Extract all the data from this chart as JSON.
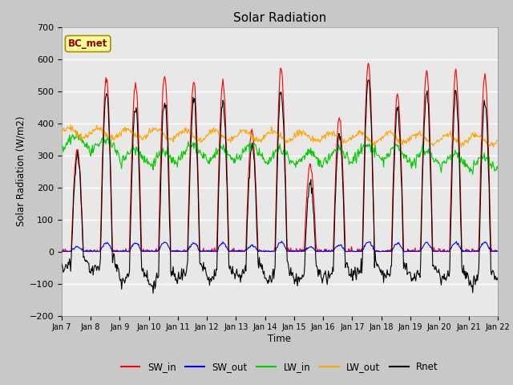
{
  "title": "Solar Radiation",
  "xlabel": "Time",
  "ylabel": "Solar Radiation (W/m2)",
  "ylim": [
    -200,
    700
  ],
  "yticks": [
    -200,
    -100,
    0,
    100,
    200,
    300,
    400,
    500,
    600,
    700
  ],
  "annotation": "BC_met",
  "legend_labels": [
    "SW_in",
    "SW_out",
    "LW_in",
    "LW_out",
    "Rnet"
  ],
  "legend_colors": [
    "#ff0000",
    "#0000ff",
    "#00cc00",
    "#ffa500",
    "#000000"
  ],
  "line_colors": {
    "SW_in": "#ff0000",
    "SW_out": "#0000ff",
    "LW_in": "#00cc00",
    "LW_out": "#ffa500",
    "Rnet": "#000000"
  },
  "x_tick_labels": [
    "Jan 7",
    "Jan 8",
    "Jan 9",
    "Jan 10",
    "Jan 11",
    "Jan 12",
    "Jan 13",
    "Jan 14",
    "Jan 15",
    "Jan 16",
    "Jan 17",
    "Jan 18",
    "Jan 19",
    "Jan 20",
    "Jan 21",
    "Jan 22"
  ],
  "n_days": 15,
  "pts_per_day": 48,
  "fig_bg_color": "#c8c8c8",
  "plot_bg_color": "#e8e8e8",
  "sw_in_peaks": [
    320,
    540,
    520,
    550,
    530,
    530,
    375,
    570,
    270,
    420,
    590,
    490,
    560,
    560,
    550
  ],
  "lw_in_base": [
    340,
    330,
    300,
    290,
    310,
    300,
    310,
    300,
    290,
    300,
    310,
    305,
    295,
    285,
    275
  ]
}
